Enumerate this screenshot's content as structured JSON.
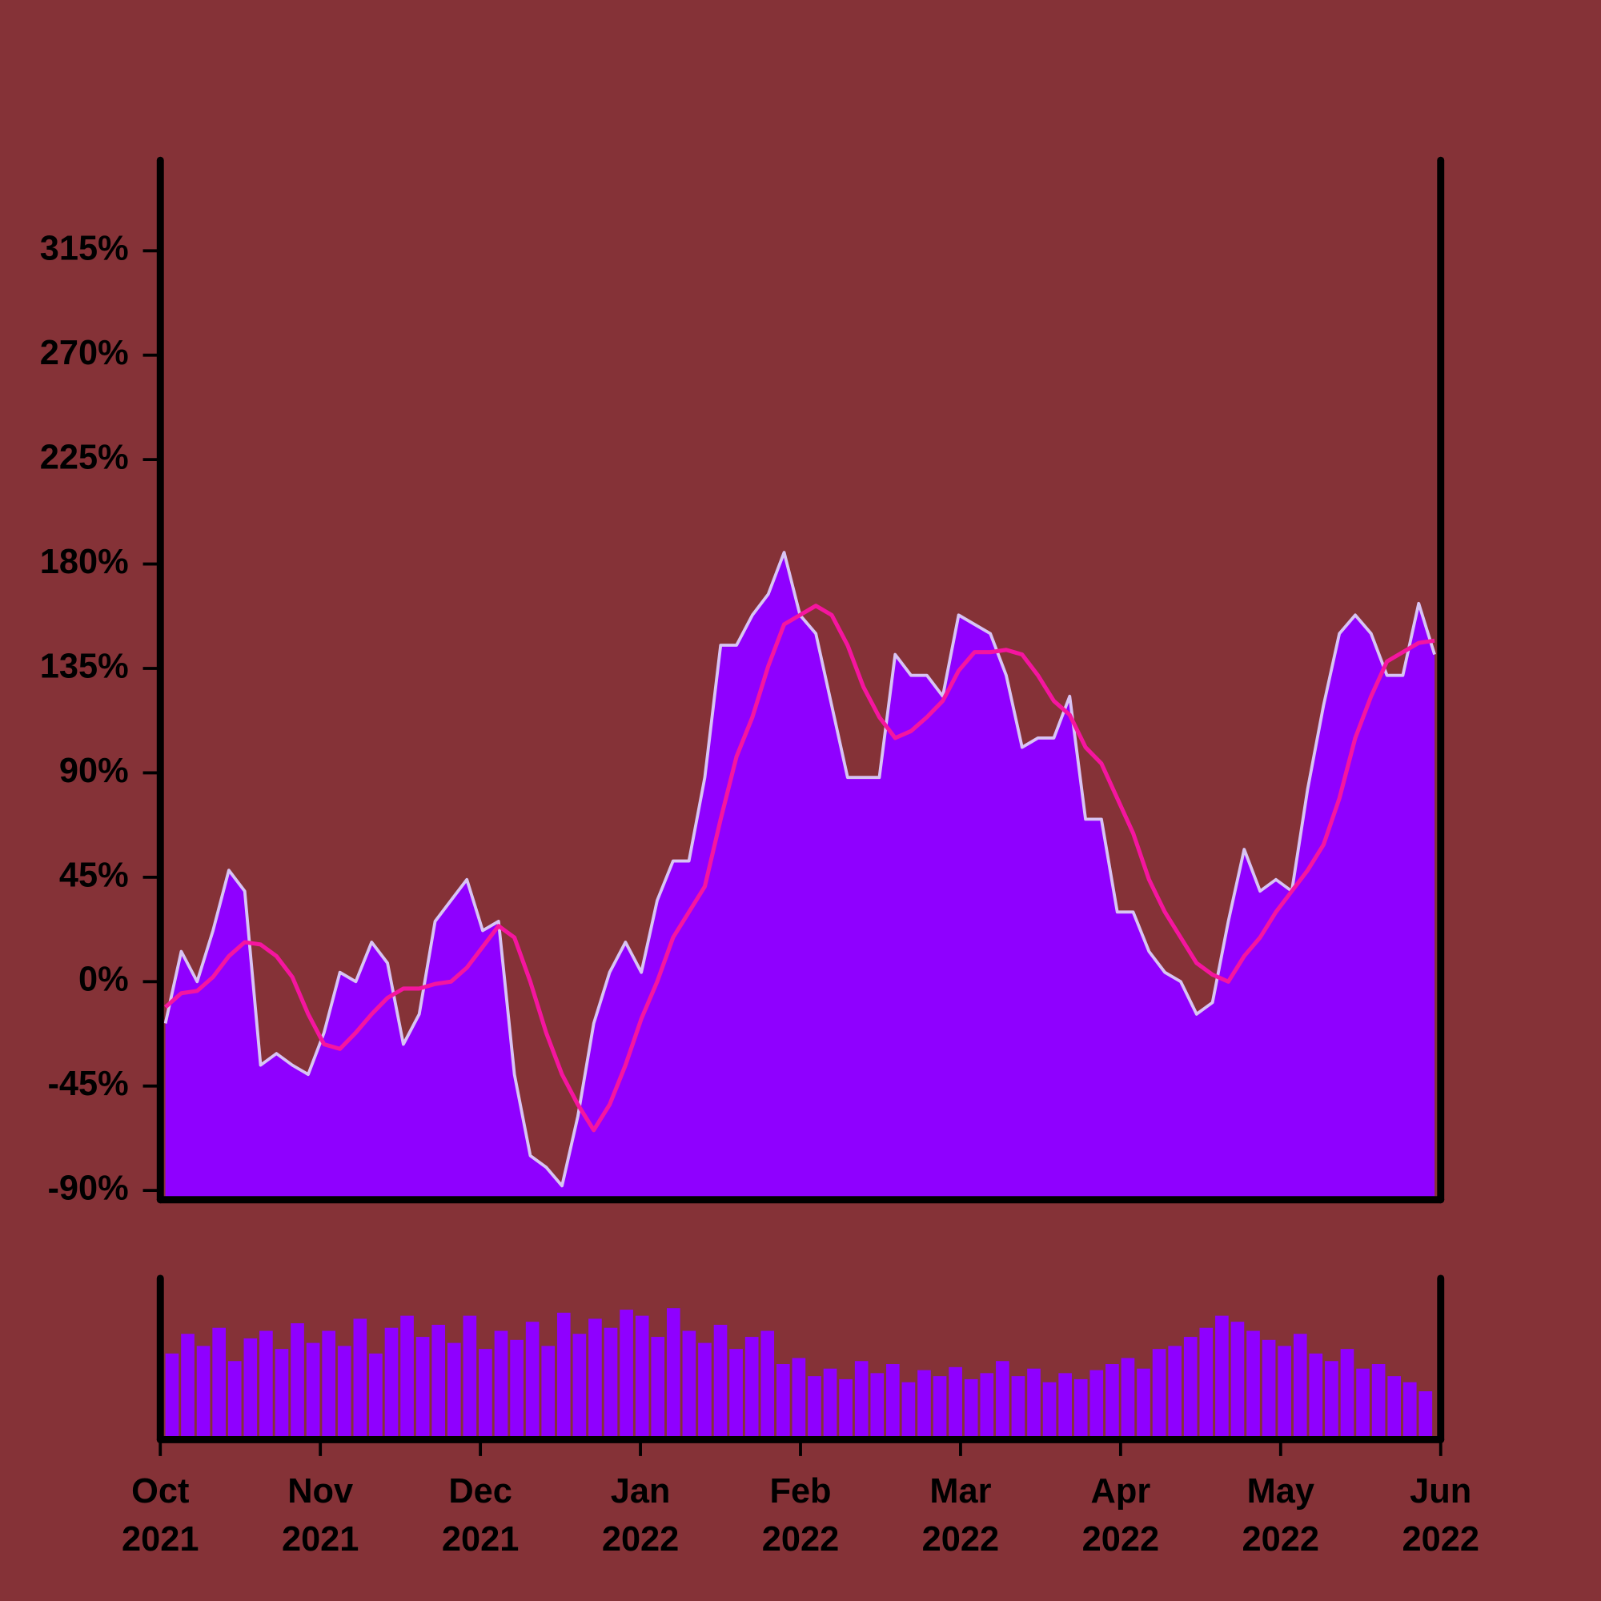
{
  "chart_data": {
    "type": "area",
    "series": [
      {
        "color": "#d8c4f4",
        "fill": "#8f00ff",
        "values": [
          -18,
          13,
          0,
          22,
          48,
          39,
          -36,
          -31,
          -36,
          -40,
          -22,
          4,
          0,
          17,
          8,
          -27,
          -14,
          26,
          35,
          44,
          22,
          26,
          -40,
          -75,
          -80,
          -88,
          -58,
          -18,
          4,
          17,
          4,
          35,
          52,
          52,
          88,
          145,
          145,
          158,
          167,
          185,
          158,
          150,
          119,
          88,
          88,
          88,
          141,
          132,
          132,
          123,
          158,
          154,
          150,
          132,
          101,
          105,
          105,
          123,
          70,
          70,
          30,
          30,
          13,
          4,
          0,
          -14,
          -9,
          26,
          57,
          39,
          44,
          39,
          83,
          119,
          150,
          158,
          150,
          132,
          132,
          163,
          141
        ]
      },
      {
        "color": "#f5159f",
        "values": [
          -11,
          -5,
          -4,
          2,
          11,
          17,
          16,
          11,
          2,
          -14,
          -27,
          -29,
          -22,
          -14,
          -7,
          -3,
          -3,
          -1,
          0,
          6,
          15,
          24,
          19,
          0,
          -22,
          -40,
          -53,
          -64,
          -53,
          -36,
          -16,
          0,
          19,
          30,
          41,
          70,
          97,
          114,
          136,
          154,
          158,
          162,
          158,
          145,
          127,
          114,
          105,
          108,
          114,
          121,
          134,
          142,
          142,
          143,
          141,
          132,
          121,
          115,
          101,
          94,
          79,
          64,
          44,
          30,
          19,
          8,
          3,
          0,
          11,
          19,
          30,
          39,
          48,
          59,
          79,
          105,
          123,
          138,
          142,
          146,
          147
        ]
      }
    ],
    "volume": {
      "color": "#8f00ff",
      "vlim": [
        0,
        100
      ],
      "values": [
        55,
        68,
        60,
        72,
        50,
        65,
        70,
        58,
        75,
        62,
        70,
        60,
        78,
        55,
        72,
        80,
        66,
        74,
        62,
        80,
        58,
        70,
        64,
        76,
        60,
        82,
        68,
        78,
        72,
        84,
        80,
        66,
        85,
        70,
        62,
        74,
        58,
        66,
        70,
        48,
        52,
        40,
        45,
        38,
        50,
        42,
        48,
        36,
        44,
        40,
        46,
        38,
        42,
        50,
        40,
        45,
        36,
        42,
        38,
        44,
        48,
        52,
        45,
        58,
        60,
        66,
        72,
        80,
        76,
        70,
        64,
        60,
        68,
        55,
        50,
        58,
        45,
        48,
        40,
        36,
        30
      ]
    },
    "ylim": [
      -94,
      354
    ],
    "yticks": [
      {
        "value": -90,
        "label": "-90%"
      },
      {
        "value": -45,
        "label": "-45%"
      },
      {
        "value": 0,
        "label": "0%"
      },
      {
        "value": 45,
        "label": "45%"
      },
      {
        "value": 90,
        "label": "90%"
      },
      {
        "value": 135,
        "label": "135%"
      },
      {
        "value": 180,
        "label": "180%"
      },
      {
        "value": 225,
        "label": "225%"
      },
      {
        "value": 270,
        "label": "270%"
      },
      {
        "value": 315,
        "label": "315%"
      }
    ],
    "xlim": [
      0,
      8
    ],
    "xticks": [
      {
        "value": 0,
        "label": "Oct 2021"
      },
      {
        "value": 1,
        "label": "Nov 2021"
      },
      {
        "value": 2,
        "label": "Dec 2021"
      },
      {
        "value": 3,
        "label": "Jan 2022"
      },
      {
        "value": 4,
        "label": "Feb 2022"
      },
      {
        "value": 5,
        "label": "Mar 2022"
      },
      {
        "value": 6,
        "label": "Apr 2022"
      },
      {
        "value": 7,
        "label": "May 2022"
      },
      {
        "value": 8,
        "label": "Jun 2022"
      }
    ],
    "background": "#853237",
    "axis_color": "#000000"
  }
}
